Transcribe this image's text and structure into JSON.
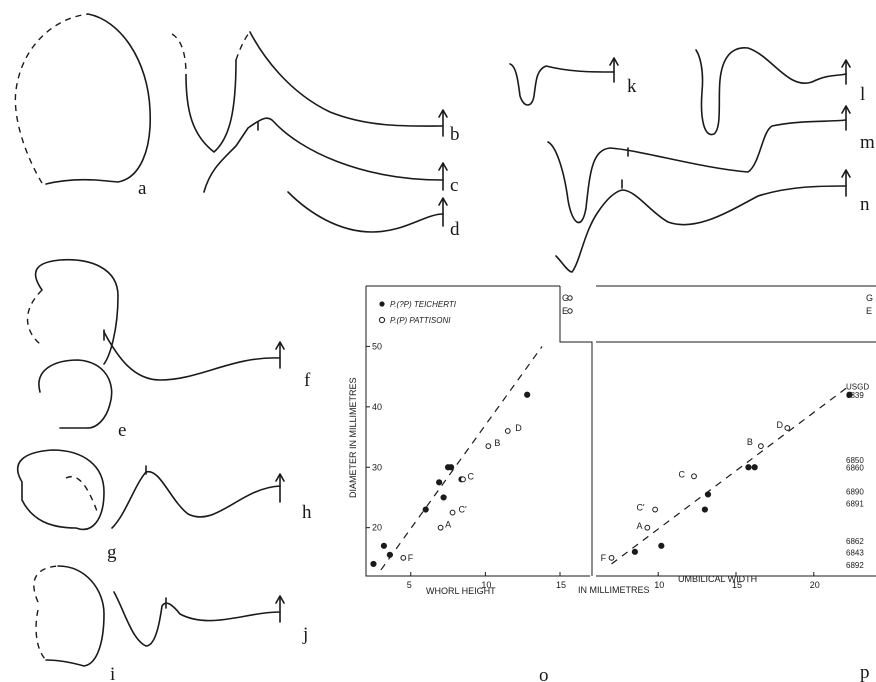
{
  "panel_letters": [
    "a",
    "b",
    "c",
    "d",
    "e",
    "f",
    "g",
    "h",
    "i",
    "j",
    "k",
    "l",
    "m",
    "n",
    "o",
    "p"
  ],
  "chart_data": [
    {
      "type": "scatter",
      "panel": "o",
      "xlabel": "WHORL HEIGHT",
      "ylabel": "DIAMETER IN MILLIMETRES",
      "xlim": [
        2,
        15
      ],
      "ylim": [
        12,
        60
      ],
      "xticks": [
        "5",
        "10",
        "15"
      ],
      "yticks": [
        "20",
        "30",
        "40",
        "50"
      ],
      "legend": [
        "P.(?P) TEICHERTI",
        "P.(P) PATTISONI"
      ],
      "legend_position": "top-left",
      "series": [
        {
          "name": "P.(?P) TEICHERTI",
          "marker": "filled",
          "x": [
            2.5,
            3.2,
            3.6,
            6.0,
            6.9,
            7.2,
            7.5,
            7.7,
            8.4,
            12.8
          ],
          "y": [
            14.0,
            17.0,
            15.5,
            23.0,
            27.5,
            25.0,
            30.0,
            30.0,
            28.0,
            42.0
          ]
        },
        {
          "name": "P.(P) PATTISONI",
          "marker": "open",
          "x": [
            4.5,
            7.0,
            7.8,
            8.5,
            10.2,
            11.5
          ],
          "y": [
            15.0,
            20.0,
            22.5,
            28.0,
            33.5,
            36.0
          ]
        }
      ],
      "point_labels": [
        {
          "text": "F",
          "x": 4.8,
          "y": 15.0
        },
        {
          "text": "A",
          "x": 7.3,
          "y": 20.5
        },
        {
          "text": "C'",
          "x": 8.2,
          "y": 23.0
        },
        {
          "text": "C",
          "x": 8.8,
          "y": 28.5
        },
        {
          "text": "B",
          "x": 10.6,
          "y": 34.0
        },
        {
          "text": "D",
          "x": 12.0,
          "y": 36.5
        }
      ],
      "trend": {
        "x": [
          3.0,
          13.8
        ],
        "y": [
          13.0,
          50.0
        ],
        "style": "dashed"
      },
      "outliers": [
        {
          "text": "G",
          "x": 22.3,
          "y": 59.5
        },
        {
          "text": "E",
          "x": 22.3,
          "y": 57.8
        }
      ]
    },
    {
      "type": "scatter",
      "panel": "p",
      "xlabel": "UMBILICAL WIDTH",
      "shared_label": "IN MILLIMETRES",
      "xlim": [
        6,
        24
      ],
      "ylim": [
        12,
        60
      ],
      "xticks": [
        "10",
        "15",
        "20"
      ],
      "legend_position": "none",
      "series": [
        {
          "name": "P.(?P) TEICHERTI",
          "marker": "filled",
          "x": [
            8.5,
            10.2,
            13.0,
            13.2,
            15.8,
            16.2,
            22.3
          ],
          "y": [
            16.0,
            17.0,
            23.0,
            25.5,
            30.0,
            30.0,
            42.0
          ]
        },
        {
          "name": "P.(P) PATTISONI",
          "marker": "open",
          "x": [
            7.0,
            9.3,
            9.8,
            12.3,
            16.6,
            18.3
          ],
          "y": [
            15.0,
            20.0,
            23.0,
            28.5,
            33.5,
            36.5
          ]
        }
      ],
      "point_labels": [
        {
          "text": "F",
          "x": 6.3,
          "y": 15.0
        },
        {
          "text": "A",
          "x": 8.6,
          "y": 20.3
        },
        {
          "text": "C'",
          "x": 8.6,
          "y": 23.3
        },
        {
          "text": "C",
          "x": 11.3,
          "y": 28.8
        },
        {
          "text": "B",
          "x": 15.7,
          "y": 34.2
        },
        {
          "text": "D",
          "x": 17.6,
          "y": 37.0
        }
      ],
      "trend": {
        "x": [
          7.0,
          22.3
        ],
        "y": [
          14.0,
          43.5
        ],
        "style": "dashed"
      },
      "outliers": [
        {
          "text": "G",
          "x": 24.0,
          "y": 59.5
        },
        {
          "text": "E",
          "x": 24.0,
          "y": 57.8
        }
      ],
      "specimen_labels": [
        {
          "text": "USGD",
          "y": 43.4
        },
        {
          "text": "6839",
          "y": 42.0
        },
        {
          "text": "6850",
          "y": 31.2
        },
        {
          "text": "6860",
          "y": 30.0
        },
        {
          "text": "6890",
          "y": 26.0
        },
        {
          "text": "6891",
          "y": 24.0
        },
        {
          "text": "6862",
          "y": 17.8
        },
        {
          "text": "6843",
          "y": 15.9
        },
        {
          "text": "6892",
          "y": 13.8
        }
      ]
    }
  ]
}
